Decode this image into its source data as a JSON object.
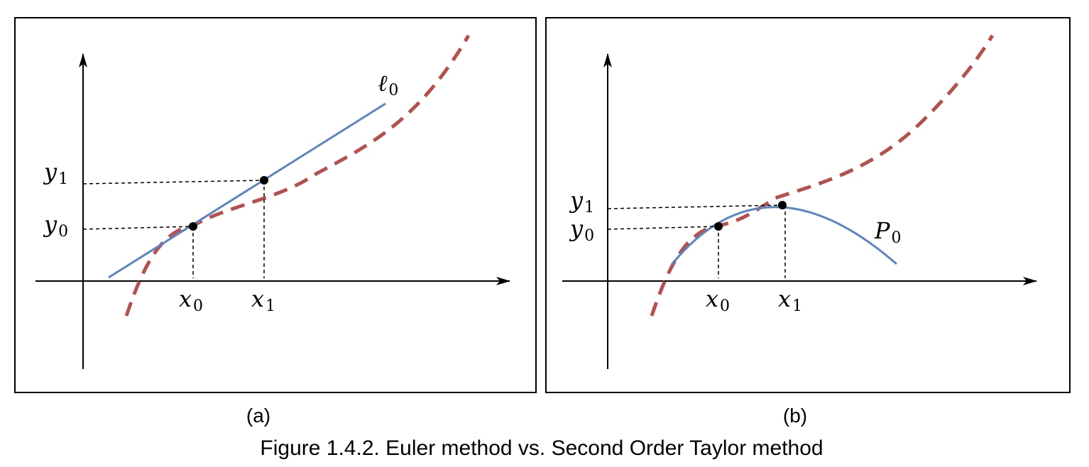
{
  "figure": {
    "caption": "Figure 1.4.2. Euler method vs. Second Order Taylor method",
    "colors": {
      "frame": "#000000",
      "exact_curve": "#b5504c",
      "approximation": "#5b85c2",
      "guide": "#000000",
      "point": "#000000"
    },
    "panels": [
      {
        "label": "(a)",
        "approximation": "ℓ",
        "approximation_sub": "0",
        "x_labels": [
          {
            "main": "x",
            "sub": "0"
          },
          {
            "main": "x",
            "sub": "1"
          }
        ],
        "y_labels": [
          {
            "main": "y",
            "sub": "0"
          },
          {
            "main": "y",
            "sub": "1"
          }
        ]
      },
      {
        "label": "(b)",
        "approximation": "P",
        "approximation_sub": "0",
        "x_labels": [
          {
            "main": "x",
            "sub": "0"
          },
          {
            "main": "x",
            "sub": "1"
          }
        ],
        "y_labels": [
          {
            "main": "y",
            "sub": "0"
          },
          {
            "main": "y",
            "sub": "1"
          }
        ]
      }
    ]
  }
}
